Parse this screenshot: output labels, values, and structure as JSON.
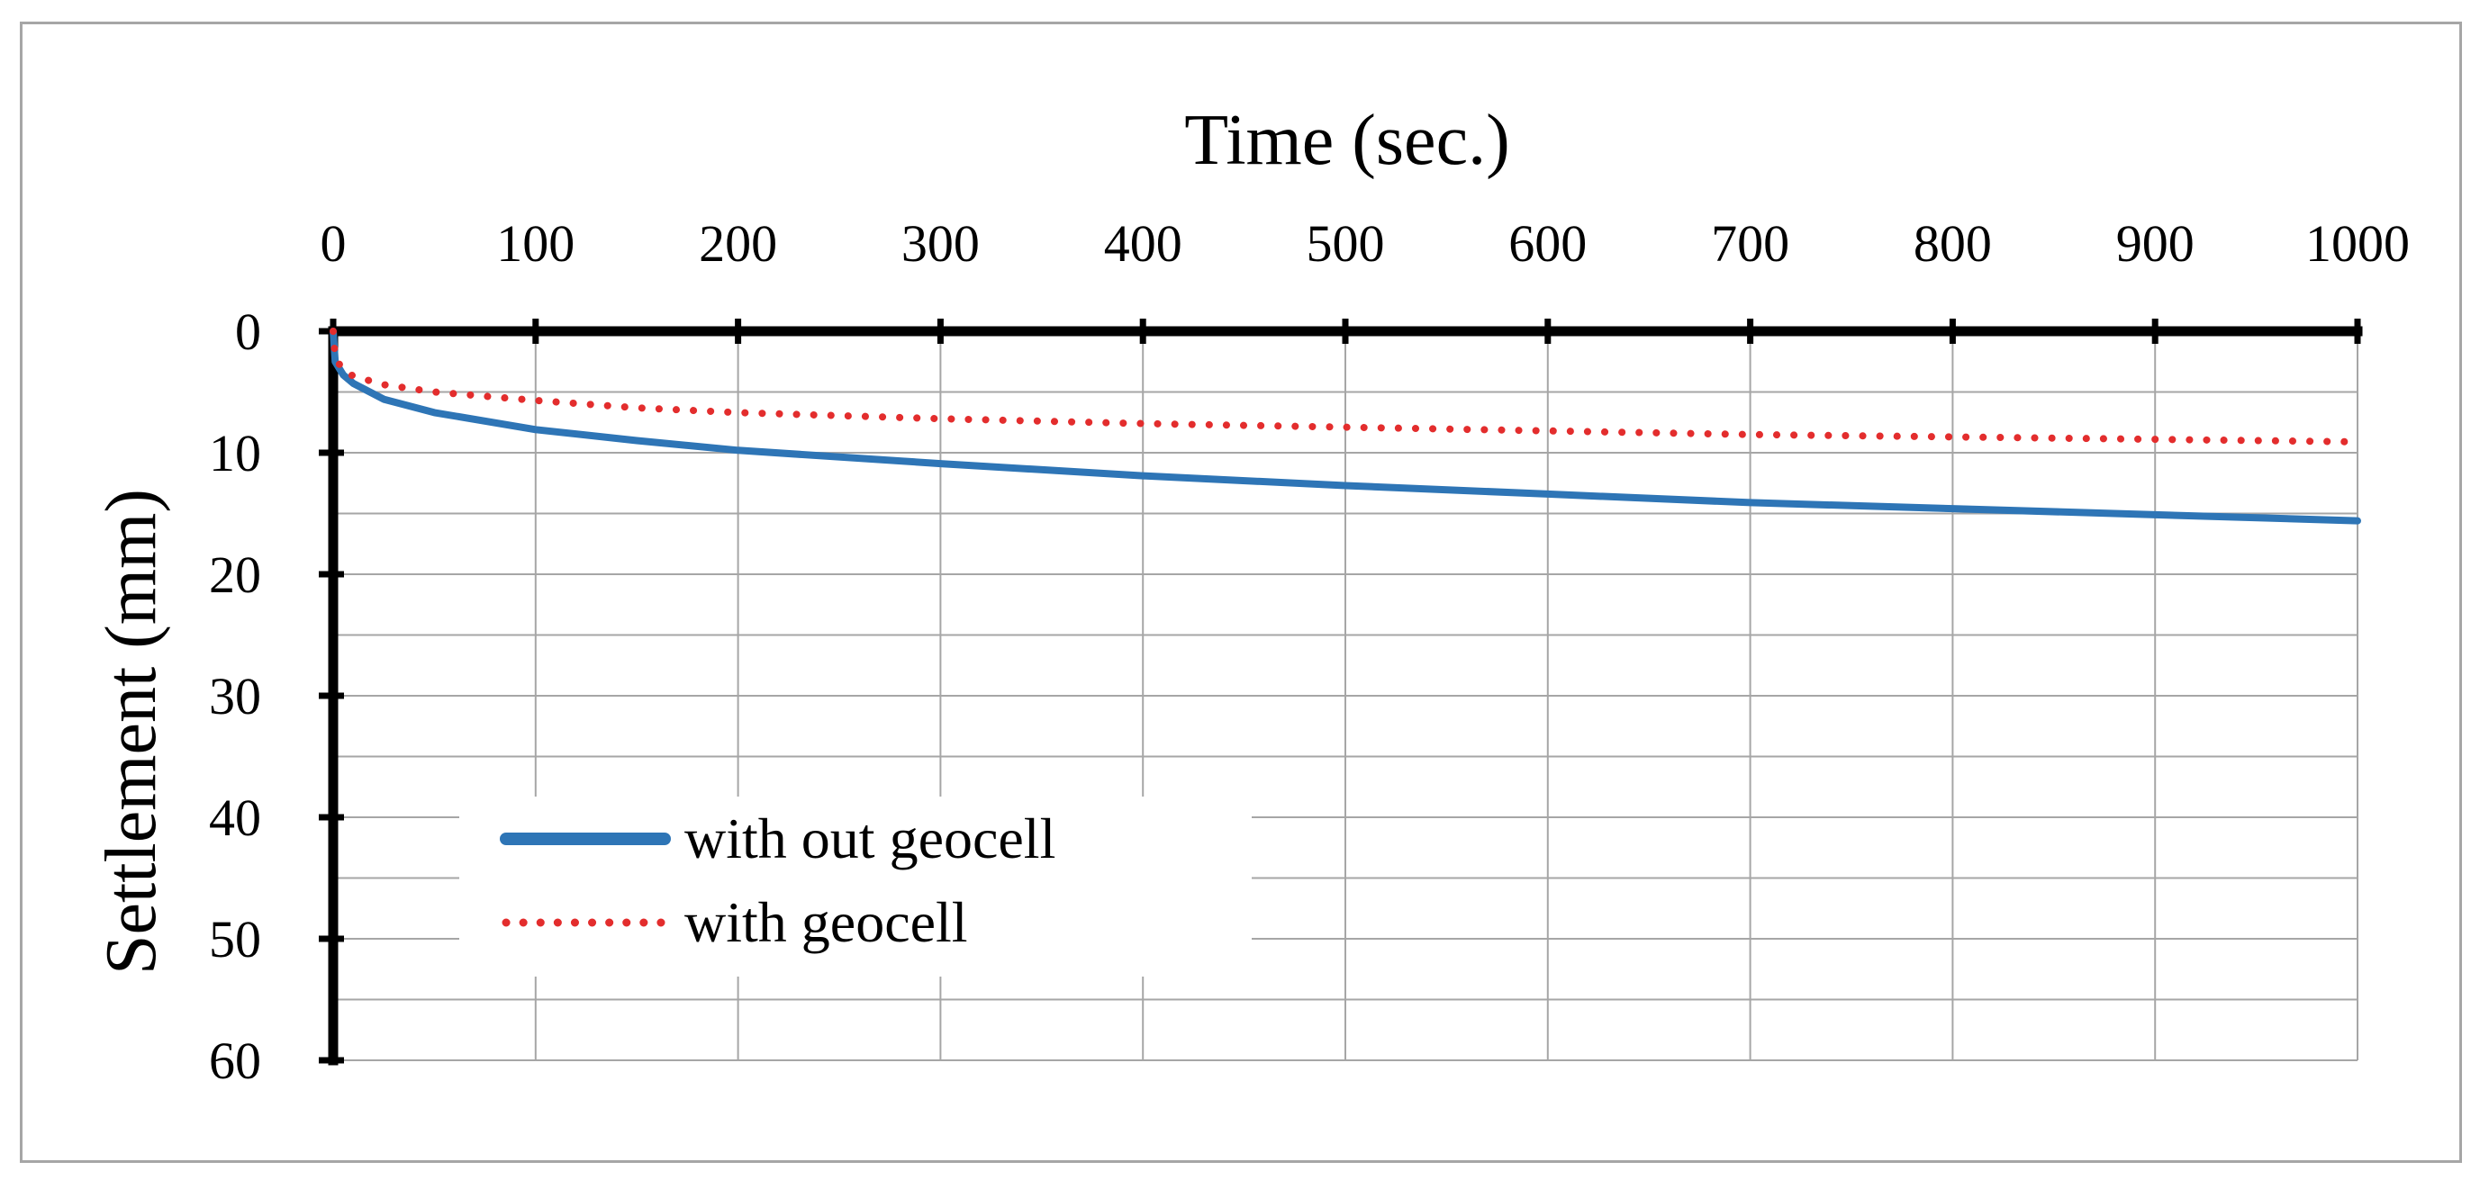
{
  "chart_data": {
    "type": "line",
    "xlabel": "Time (sec.)",
    "ylabel": "Settlement (mm)",
    "x_axis_position": "top",
    "y_axis_inverted": true,
    "xlim": [
      0,
      1000
    ],
    "ylim": [
      0,
      60
    ],
    "x_ticks": [
      0,
      100,
      200,
      300,
      400,
      500,
      600,
      700,
      800,
      900,
      1000
    ],
    "y_ticks": [
      0,
      10,
      20,
      30,
      40,
      50,
      60
    ],
    "x_tick_labels": [
      "0",
      "100",
      "200",
      "300",
      "400",
      "500",
      "600",
      "700",
      "800",
      "900",
      "1000"
    ],
    "y_tick_labels": [
      "0",
      "10",
      "20",
      "30",
      "40",
      "50",
      "60"
    ],
    "grid": true,
    "grid_y_step": 5,
    "legend_position": "bottom-left",
    "series": [
      {
        "name": "with out geocell",
        "color": "#2e75b6",
        "style": "solid",
        "x": [
          0,
          1,
          5,
          10,
          25,
          50,
          100,
          150,
          200,
          300,
          400,
          500,
          600,
          700,
          800,
          900,
          1000
        ],
        "y": [
          0,
          2.5,
          3.6,
          4.3,
          5.6,
          6.7,
          8.1,
          9.0,
          9.8,
          10.9,
          11.9,
          12.7,
          13.4,
          14.1,
          14.6,
          15.1,
          15.6
        ]
      },
      {
        "name": "with geocell",
        "color": "#e32d2d",
        "style": "dotted",
        "x": [
          0,
          1,
          5,
          10,
          25,
          50,
          100,
          150,
          200,
          300,
          400,
          500,
          600,
          700,
          800,
          900,
          1000
        ],
        "y": [
          0,
          2.2,
          3.2,
          3.7,
          4.4,
          5.0,
          5.7,
          6.3,
          6.7,
          7.2,
          7.6,
          7.9,
          8.2,
          8.5,
          8.7,
          8.9,
          9.1
        ]
      }
    ]
  }
}
